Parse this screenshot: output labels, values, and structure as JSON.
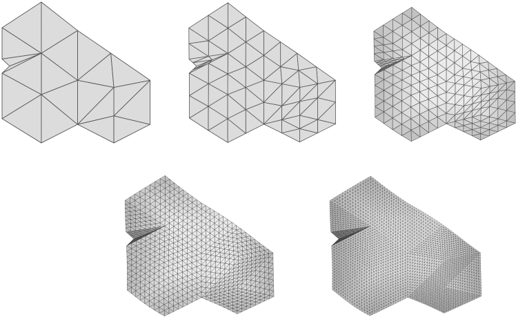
{
  "figure": {
    "stages": [
      {
        "id": "stage-1",
        "subdivision_level": 0
      },
      {
        "id": "stage-2",
        "subdivision_level": 1
      },
      {
        "id": "stage-3",
        "subdivision_level": 2
      },
      {
        "id": "stage-4",
        "subdivision_level": 3
      },
      {
        "id": "stage-5",
        "subdivision_level": 4
      }
    ],
    "colors": {
      "background": "#ffffff",
      "mesh_fill": "#dcdcdc",
      "mesh_fill_shaded": "#c9c9c9",
      "edge": "#555555",
      "edge_dense": "#333333"
    }
  }
}
